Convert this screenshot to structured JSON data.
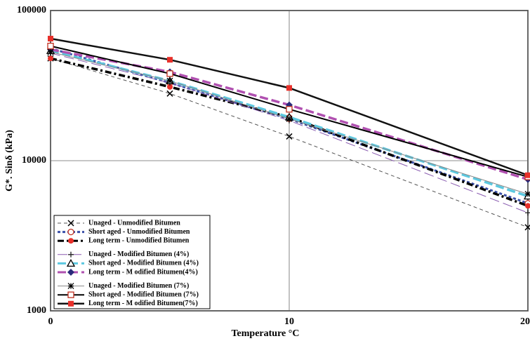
{
  "chart_data": {
    "type": "line",
    "x_label": "Temperature °C",
    "y_label": "G*. Sinδ (kPa)",
    "x": [
      0,
      5,
      10,
      20
    ],
    "xlim": [
      0,
      20
    ],
    "xticks": [
      0,
      10,
      20
    ],
    "ylim": [
      1000,
      100000
    ],
    "yticks": [
      1000,
      10000,
      100000
    ],
    "log_y": true,
    "grid": true,
    "legend": "lower left",
    "series": [
      {
        "name": "Unaged - Unmodified Bitumen",
        "color": "#555555",
        "dash": "5,4",
        "width": 1,
        "marker": "cross",
        "values": [
          48000,
          28000,
          14500,
          3600
        ]
      },
      {
        "name": "Short aged - Unmodified Bitumen",
        "color": "#3a4fa8",
        "dash": "4,3",
        "width": 3,
        "marker": "circle-open",
        "values": [
          56000,
          33000,
          19000,
          5200
        ]
      },
      {
        "name": "Long term - Unmodified Bitumen",
        "color": "#000000",
        "dash": "9,4,3,4",
        "width": 3.5,
        "marker": "dot-red",
        "values": [
          48000,
          31000,
          19500,
          5000
        ]
      },
      {
        "name": "Unaged - Modified Bitumen (4%)",
        "color": "#8a5cb0",
        "dash": "14,6",
        "width": 1,
        "marker": "plus",
        "values": [
          52000,
          33000,
          18500,
          4500
        ]
      },
      {
        "name": "Short aged - Modified Bitumen (4%)",
        "color": "#5cc8e0",
        "dash": "12,5",
        "width": 3.5,
        "marker": "triangle-open",
        "values": [
          54000,
          34000,
          19500,
          5800
        ]
      },
      {
        "name": "Long term - M odified Bitumen(4%)",
        "color": "#b050b0",
        "dash": "12,5",
        "width": 3.5,
        "marker": "diamond",
        "values": [
          55000,
          39000,
          23500,
          7500
        ]
      },
      {
        "name": "Unaged - Modified Bitumen (7%)",
        "color": "#888888",
        "dash": "",
        "width": 1,
        "marker": "star",
        "values": [
          53000,
          34000,
          19000,
          6000
        ]
      },
      {
        "name": "Short aged - Modified Bitumen (7%)",
        "color": "#000000",
        "dash": "",
        "width": 2,
        "marker": "square-open",
        "values": [
          58000,
          38000,
          22000,
          7800
        ]
      },
      {
        "name": "Long term - M odified Bitumen(7%)",
        "color": "#111111",
        "dash": "",
        "width": 2.5,
        "marker": "square-red",
        "values": [
          65000,
          47000,
          30500,
          8000
        ]
      }
    ]
  }
}
